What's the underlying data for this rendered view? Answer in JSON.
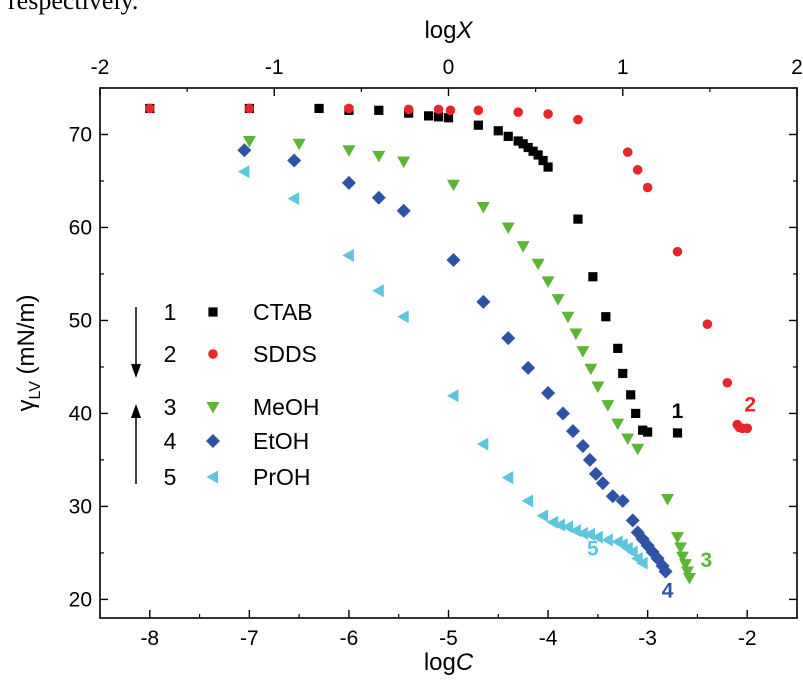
{
  "header_fragment": "respectively.",
  "chart_data": {
    "type": "scatter",
    "xlabel_bottom": "logC",
    "xlabel_top": "logX",
    "ylabel": "γLV (mN/m)",
    "xlim": [
      -8.5,
      -1.5
    ],
    "ylim": [
      18,
      75
    ],
    "top_xlim": [
      -2,
      2
    ],
    "x_ticks": [
      -8,
      -7,
      -6,
      -5,
      -4,
      -3,
      -2
    ],
    "y_ticks": [
      20,
      30,
      40,
      50,
      60,
      70
    ],
    "top_ticks": [
      -2,
      -1,
      0,
      1,
      2
    ],
    "grid": false,
    "legend_position": "left-middle",
    "series": [
      {
        "name": "CTAB",
        "index": "1",
        "marker": "square",
        "color": "#000000",
        "label_color": "#000000",
        "x": [
          -8.0,
          -7.0,
          -6.3,
          -6.0,
          -5.7,
          -5.4,
          -5.2,
          -5.1,
          -5.0,
          -4.7,
          -4.5,
          -4.4,
          -4.3,
          -4.25,
          -4.2,
          -4.15,
          -4.1,
          -4.05,
          -4.0,
          -3.7,
          -3.55,
          -3.42,
          -3.3,
          -3.25,
          -3.17,
          -3.12,
          -3.05,
          -3.0,
          -2.7
        ],
        "y": [
          72.8,
          72.8,
          72.8,
          72.6,
          72.6,
          72.3,
          72.0,
          71.9,
          71.8,
          71.0,
          70.4,
          69.8,
          69.3,
          69.0,
          68.6,
          68.2,
          67.8,
          67.2,
          66.5,
          60.9,
          54.7,
          50.4,
          47.0,
          44.3,
          42.0,
          40.0,
          38.2,
          38.0,
          37.9
        ]
      },
      {
        "name": "SDDS",
        "index": "2",
        "marker": "circle",
        "color": "#e8252a",
        "label_color": "#e8252a",
        "x": [
          -8.0,
          -7.0,
          -6.0,
          -5.4,
          -5.1,
          -4.98,
          -4.7,
          -4.3,
          -4.0,
          -3.7,
          -3.2,
          -3.1,
          -3.0,
          -2.7,
          -2.4,
          -2.2,
          -2.1,
          -2.08,
          -2.05,
          -2.0
        ],
        "y": [
          72.8,
          72.8,
          72.8,
          72.7,
          72.7,
          72.6,
          72.6,
          72.4,
          72.2,
          71.6,
          68.1,
          66.2,
          64.3,
          57.4,
          49.6,
          43.3,
          38.8,
          38.5,
          38.4,
          38.4
        ]
      },
      {
        "name": "MeOH",
        "index": "3",
        "marker": "triangle-down",
        "color": "#5cb534",
        "label_color": "#5cb534",
        "x": [
          -7.0,
          -6.5,
          -6.0,
          -5.7,
          -5.45,
          -4.95,
          -4.65,
          -4.4,
          -4.25,
          -4.1,
          -4.0,
          -3.9,
          -3.8,
          -3.72,
          -3.65,
          -3.57,
          -3.5,
          -3.4,
          -3.3,
          -3.2,
          -3.1,
          -2.8,
          -2.7,
          -2.67,
          -2.65,
          -2.62,
          -2.6,
          -2.58
        ],
        "y": [
          69.3,
          69.0,
          68.3,
          67.7,
          67.1,
          64.6,
          62.2,
          60.0,
          58.0,
          56.1,
          54.2,
          52.3,
          50.4,
          48.6,
          46.7,
          44.8,
          42.9,
          40.9,
          38.9,
          37.3,
          36.2,
          30.8,
          26.7,
          25.6,
          24.6,
          23.8,
          23.0,
          22.3
        ]
      },
      {
        "name": "EtOH",
        "index": "4",
        "marker": "diamond",
        "color": "#2e53a6",
        "label_color": "#2e53a6",
        "x": [
          -7.05,
          -6.55,
          -6.0,
          -5.7,
          -5.45,
          -4.95,
          -4.65,
          -4.4,
          -4.2,
          -4.0,
          -3.85,
          -3.75,
          -3.65,
          -3.58,
          -3.52,
          -3.45,
          -3.35,
          -3.25,
          -3.15,
          -3.1,
          -3.05,
          -3.0,
          -2.95,
          -2.9,
          -2.85,
          -2.82
        ],
        "y": [
          68.3,
          67.2,
          64.8,
          63.2,
          61.8,
          56.5,
          52.0,
          48.1,
          44.9,
          42.2,
          40.0,
          38.1,
          36.5,
          35.0,
          33.5,
          32.5,
          31.1,
          30.6,
          28.5,
          27.2,
          26.5,
          25.8,
          25.1,
          24.4,
          23.6,
          23.0
        ]
      },
      {
        "name": "PrOH",
        "index": "5",
        "marker": "triangle-left",
        "color": "#5ec6dc",
        "label_color": "#5ec6dc",
        "x": [
          -7.05,
          -6.55,
          -6.0,
          -5.7,
          -5.45,
          -4.95,
          -4.65,
          -4.4,
          -4.2,
          -4.05,
          -3.95,
          -3.88,
          -3.8,
          -3.72,
          -3.65,
          -3.58,
          -3.5,
          -3.4,
          -3.3,
          -3.25,
          -3.2,
          -3.15,
          -3.1,
          -3.05
        ],
        "y": [
          66.0,
          63.1,
          57.0,
          53.2,
          50.4,
          41.9,
          36.7,
          33.1,
          30.6,
          29.0,
          28.3,
          28.0,
          27.8,
          27.4,
          27.1,
          27.0,
          26.7,
          26.4,
          26.2,
          25.9,
          25.5,
          25.1,
          24.4,
          23.9
        ]
      }
    ],
    "curve_labels": [
      {
        "text": "1",
        "x": -2.7,
        "y": 39.5,
        "color": "#000000"
      },
      {
        "text": "2",
        "x": -1.97,
        "y": 40.2,
        "color": "#e8252a"
      },
      {
        "text": "3",
        "x": -2.41,
        "y": 23.5,
        "color": "#5cb534"
      },
      {
        "text": "4",
        "x": -2.8,
        "y": 20.2,
        "color": "#2e53a6"
      },
      {
        "text": "5",
        "x": -3.55,
        "y": 24.7,
        "color": "#5ec6dc"
      }
    ]
  }
}
